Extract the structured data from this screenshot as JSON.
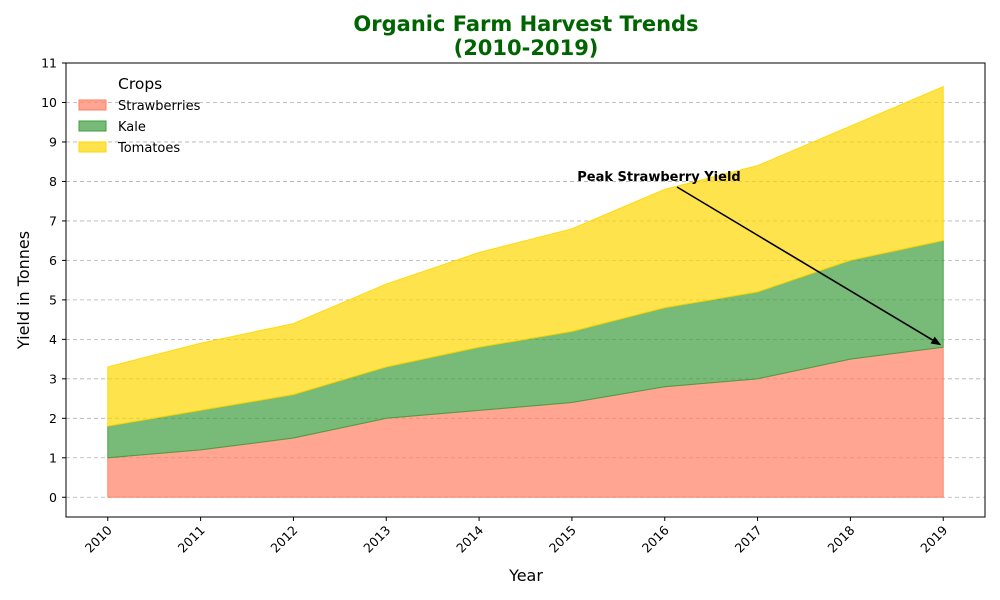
{
  "chart_data": {
    "type": "area",
    "stacked": true,
    "title_line1": "Organic Farm Harvest Trends",
    "title_line2": "(2010-2019)",
    "title_color": "#006400",
    "xlabel": "Year",
    "ylabel": "Yield in Tonnes",
    "x": [
      2010,
      2011,
      2012,
      2013,
      2014,
      2015,
      2016,
      2017,
      2018,
      2019
    ],
    "x_tick_labels": [
      "2010",
      "2011",
      "2012",
      "2013",
      "2014",
      "2015",
      "2016",
      "2017",
      "2018",
      "2019"
    ],
    "ylim": [
      -0.5,
      11
    ],
    "y_ticks": [
      0,
      1,
      2,
      3,
      4,
      5,
      6,
      7,
      8,
      9,
      10,
      11
    ],
    "grid": "y-dashed",
    "legend": {
      "title": "Crops",
      "position": "top-left"
    },
    "series": [
      {
        "name": "Strawberries",
        "color": "#ff7f63",
        "values": [
          1.0,
          1.2,
          1.5,
          2.0,
          2.2,
          2.4,
          2.8,
          3.0,
          3.5,
          3.8
        ]
      },
      {
        "name": "Kale",
        "color": "#3f9e3f",
        "values": [
          0.8,
          1.0,
          1.1,
          1.3,
          1.6,
          1.8,
          2.0,
          2.2,
          2.5,
          2.7
        ]
      },
      {
        "name": "Tomatoes",
        "color": "#ffd700",
        "values": [
          1.5,
          1.7,
          1.8,
          2.1,
          2.4,
          2.6,
          3.0,
          3.2,
          3.4,
          3.9
        ]
      }
    ],
    "annotation": {
      "text": "Peak Strawberry Yield",
      "point": [
        2019,
        3.8
      ]
    }
  }
}
